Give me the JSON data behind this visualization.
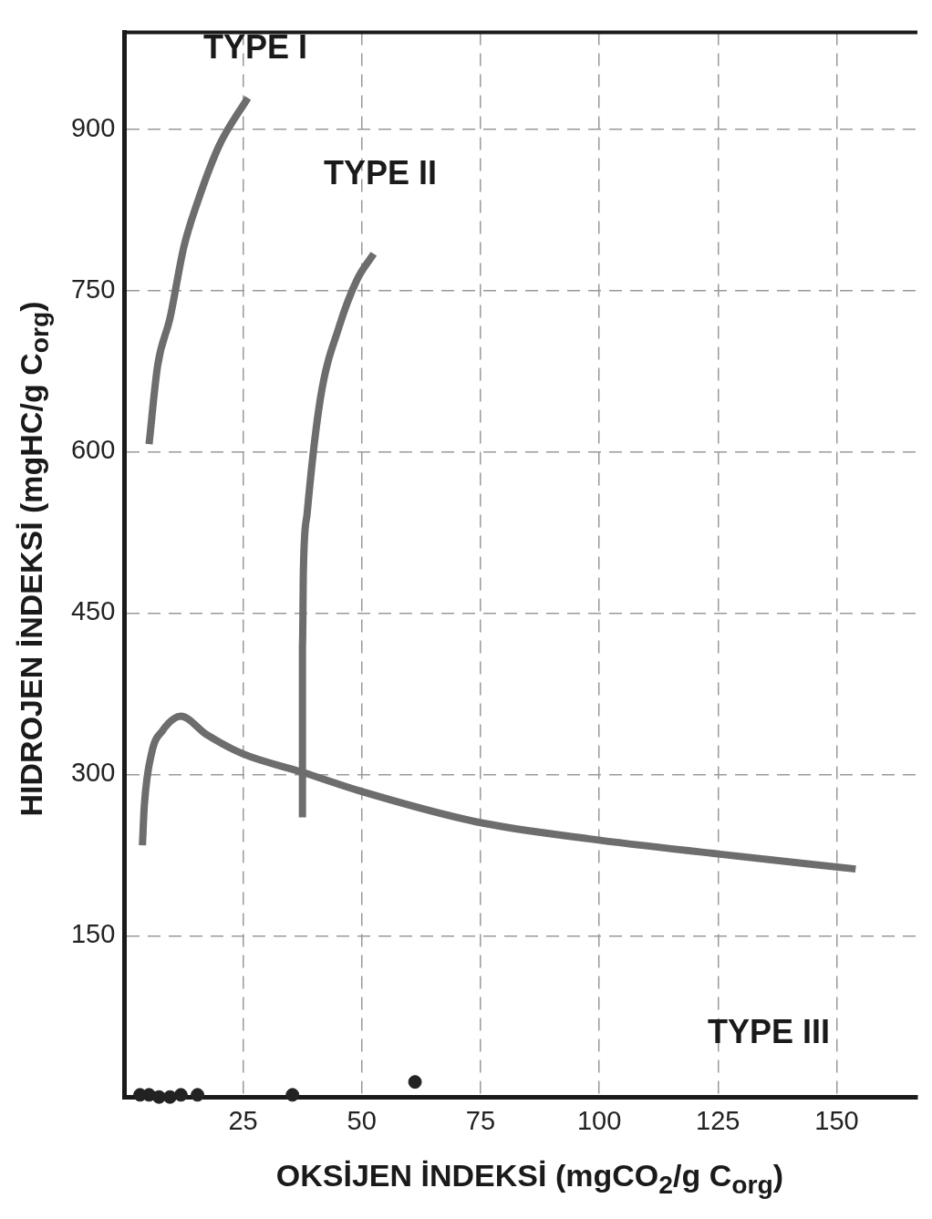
{
  "chart_data": {
    "type": "line",
    "xlabel": "OKSİJEN İNDEKSİ (mgCO$_{2}$/g C$_{org}$)",
    "ylabel": "HIDROJEN İNDEKSİ (mgHC/g C$_{org}$)",
    "xlim": [
      0,
      167
    ],
    "ylim": [
      0,
      990
    ],
    "xticks": [
      25,
      50,
      75,
      100,
      125,
      150
    ],
    "yticks": [
      150,
      300,
      450,
      600,
      750,
      900
    ],
    "grid": true,
    "legend": false,
    "marker": "none",
    "line_style": "solid",
    "series": [
      {
        "color": "#6d6d6d",
        "x": [
          5.2,
          7,
          9.6,
          12.5,
          15.4,
          20,
          26
        ],
        "values": [
          607,
          680,
          724,
          790,
          832,
          885,
          929
        ]
      },
      {
        "color": "#6d6d6d",
        "x": [
          37.5,
          37.5,
          37.7,
          38.5,
          41.3,
          45.2,
          49,
          52.5
        ],
        "values": [
          260,
          420,
          490,
          543,
          650,
          716,
          760,
          784
        ]
      },
      {
        "color": "#6d6d6d",
        "x": [
          3.8,
          4.2,
          5.8,
          8.1,
          10.5,
          11.9,
          17.3,
          25,
          37.5,
          50,
          74,
          98,
          125,
          154
        ],
        "values": [
          234,
          271,
          321,
          341,
          352,
          354,
          337,
          319,
          302,
          284,
          256,
          240,
          226,
          212
        ]
      },
      {
        "type": "scatter",
        "color": "#222222",
        "marker": "circle",
        "x": [
          3.3,
          5.2,
          7.3,
          9.6,
          11.9,
          15.4,
          35.4,
          61.2
        ],
        "values": [
          2,
          2,
          0,
          0,
          2,
          2,
          2,
          14
        ]
      }
    ],
    "annotations": [
      "TYPE I",
      "TYPE II",
      "TYPE III"
    ]
  }
}
